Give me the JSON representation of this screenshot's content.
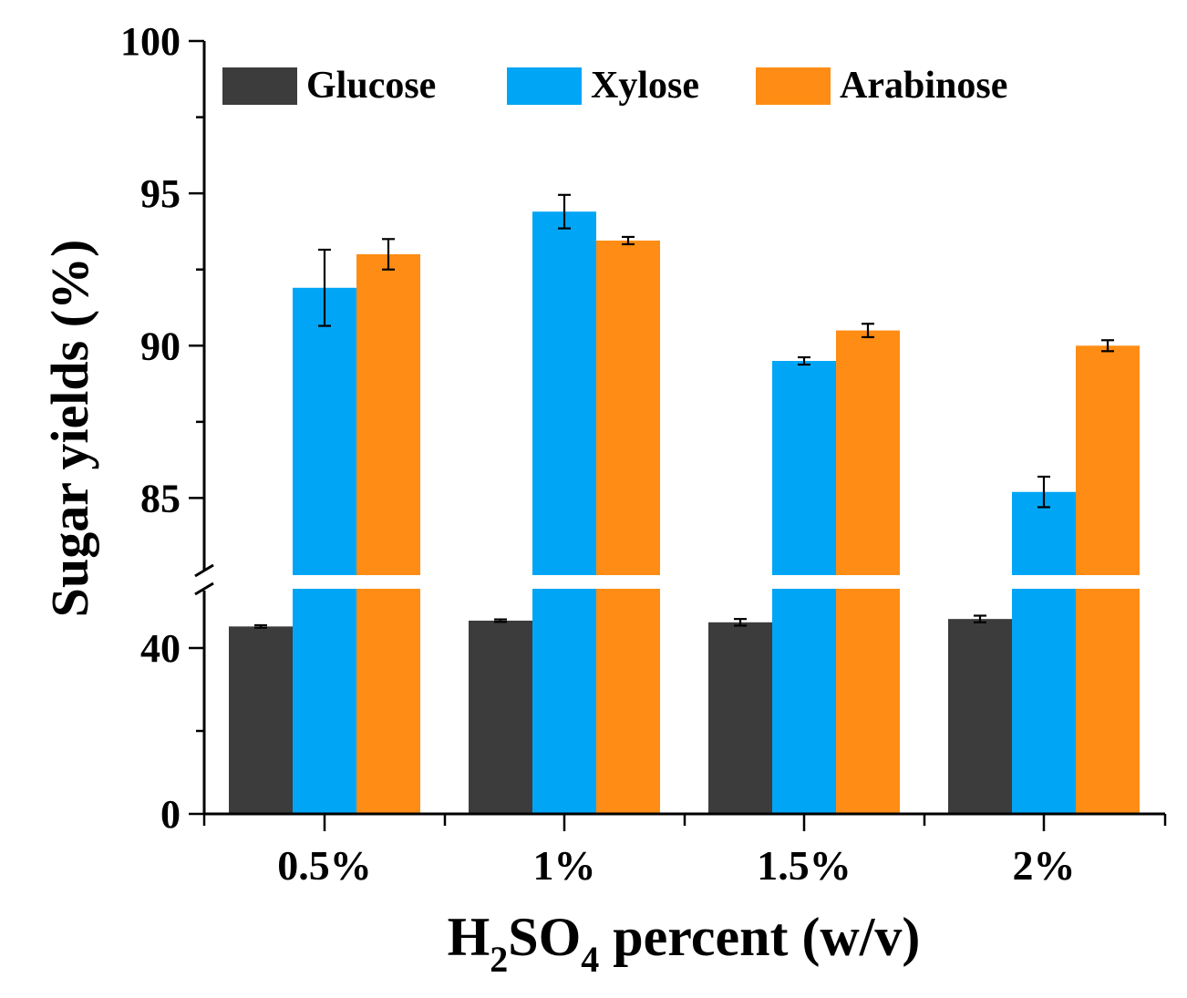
{
  "chart_data": {
    "type": "bar",
    "categories": [
      "0.5%",
      "1%",
      "1.5%",
      "2%"
    ],
    "series": [
      {
        "name": "Glucose",
        "color": "#3c3c3c",
        "values": [
          45.2,
          46.6,
          46.2,
          47.0
        ],
        "errors": [
          0.3,
          0.3,
          0.8,
          0.8
        ]
      },
      {
        "name": "Xylose",
        "color": "#00a6f5",
        "values": [
          91.9,
          94.4,
          89.5,
          85.2
        ],
        "errors": [
          1.25,
          0.55,
          0.12,
          0.5
        ]
      },
      {
        "name": "Arabinose",
        "color": "#ff8c14",
        "values": [
          93.0,
          93.45,
          90.5,
          90.0
        ],
        "errors": [
          0.5,
          0.12,
          0.22,
          0.18
        ]
      }
    ],
    "xlabel_main": "H",
    "xlabel_sub1": "2",
    "xlabel_mid": "SO",
    "xlabel_sub2": "4",
    "xlabel_tail": " percent (w/v)",
    "ylabel": "Sugar yields (%)",
    "y_axis_break": true,
    "lower_segment": {
      "ylim": [
        0,
        60
      ],
      "ticks": [
        "0",
        "40"
      ],
      "tick_values": [
        0,
        40
      ]
    },
    "upper_segment": {
      "ylim": [
        82.5,
        100
      ],
      "ticks": [
        "85",
        "90",
        "95",
        "100"
      ],
      "tick_values": [
        85,
        90,
        95,
        100
      ]
    },
    "legend_position": "top",
    "grid": false
  }
}
